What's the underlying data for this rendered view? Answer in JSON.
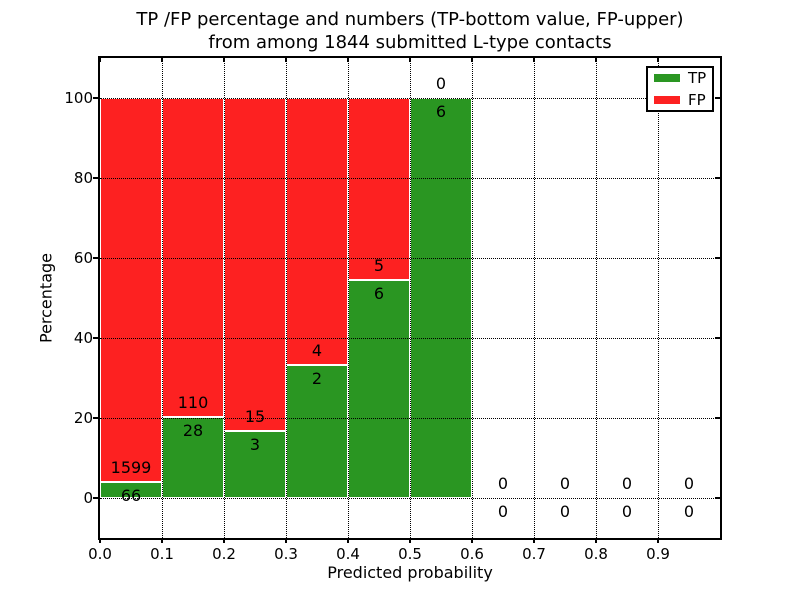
{
  "title": {
    "line1": "TP /FP percentage and numbers (TP-bottom value, FP-upper)",
    "line2": "from among 1844 submitted L-type contacts"
  },
  "axes": {
    "xlabel": "Predicted probability",
    "ylabel": "Percentage"
  },
  "legend": {
    "items": [
      {
        "label": "TP",
        "color": "#2a9622"
      },
      {
        "label": "FP",
        "color": "#fd2121"
      }
    ]
  },
  "chart_data": {
    "type": "bar",
    "stacked": true,
    "normalized": "percent",
    "title": "TP /FP percentage and numbers (TP-bottom value, FP-upper) from among 1844 submitted L-type contacts",
    "xlabel": "Predicted probability",
    "ylabel": "Percentage",
    "grid": true,
    "legend_position": "upper right",
    "xlim": [
      0.0,
      1.0
    ],
    "ylim": [
      -10,
      110
    ],
    "bin_width": 0.1,
    "total_submitted": 1844,
    "xticks": [
      {
        "v": 0.0,
        "label": "0.0"
      },
      {
        "v": 0.1,
        "label": "0.1"
      },
      {
        "v": 0.2,
        "label": "0.2"
      },
      {
        "v": 0.3,
        "label": "0.3"
      },
      {
        "v": 0.4,
        "label": "0.4"
      },
      {
        "v": 0.5,
        "label": "0.5"
      },
      {
        "v": 0.6,
        "label": "0.6"
      },
      {
        "v": 0.7,
        "label": "0.7"
      },
      {
        "v": 0.8,
        "label": "0.8"
      },
      {
        "v": 0.9,
        "label": "0.9"
      }
    ],
    "yticks": [
      {
        "v": 0,
        "label": "0"
      },
      {
        "v": 20,
        "label": "20"
      },
      {
        "v": 40,
        "label": "40"
      },
      {
        "v": 60,
        "label": "60"
      },
      {
        "v": 80,
        "label": "80"
      },
      {
        "v": 100,
        "label": "100"
      }
    ],
    "series": [
      {
        "name": "TP",
        "color": "#2a9622",
        "counts": [
          66,
          28,
          3,
          2,
          6,
          6,
          0,
          0,
          0,
          0
        ]
      },
      {
        "name": "FP",
        "color": "#fd2121",
        "counts": [
          1599,
          110,
          15,
          4,
          5,
          0,
          0,
          0,
          0,
          0
        ]
      }
    ],
    "bins": [
      {
        "x0": 0.0,
        "x1": 0.1,
        "tp": 66,
        "fp": 1599
      },
      {
        "x0": 0.1,
        "x1": 0.2,
        "tp": 28,
        "fp": 110
      },
      {
        "x0": 0.2,
        "x1": 0.3,
        "tp": 3,
        "fp": 15
      },
      {
        "x0": 0.3,
        "x1": 0.4,
        "tp": 2,
        "fp": 4
      },
      {
        "x0": 0.4,
        "x1": 0.5,
        "tp": 6,
        "fp": 5
      },
      {
        "x0": 0.5,
        "x1": 0.6,
        "tp": 6,
        "fp": 0
      },
      {
        "x0": 0.6,
        "x1": 0.7,
        "tp": 0,
        "fp": 0
      },
      {
        "x0": 0.7,
        "x1": 0.8,
        "tp": 0,
        "fp": 0
      },
      {
        "x0": 0.8,
        "x1": 0.9,
        "tp": 0,
        "fp": 0
      },
      {
        "x0": 0.9,
        "x1": 1.0,
        "tp": 0,
        "fp": 0
      }
    ]
  }
}
